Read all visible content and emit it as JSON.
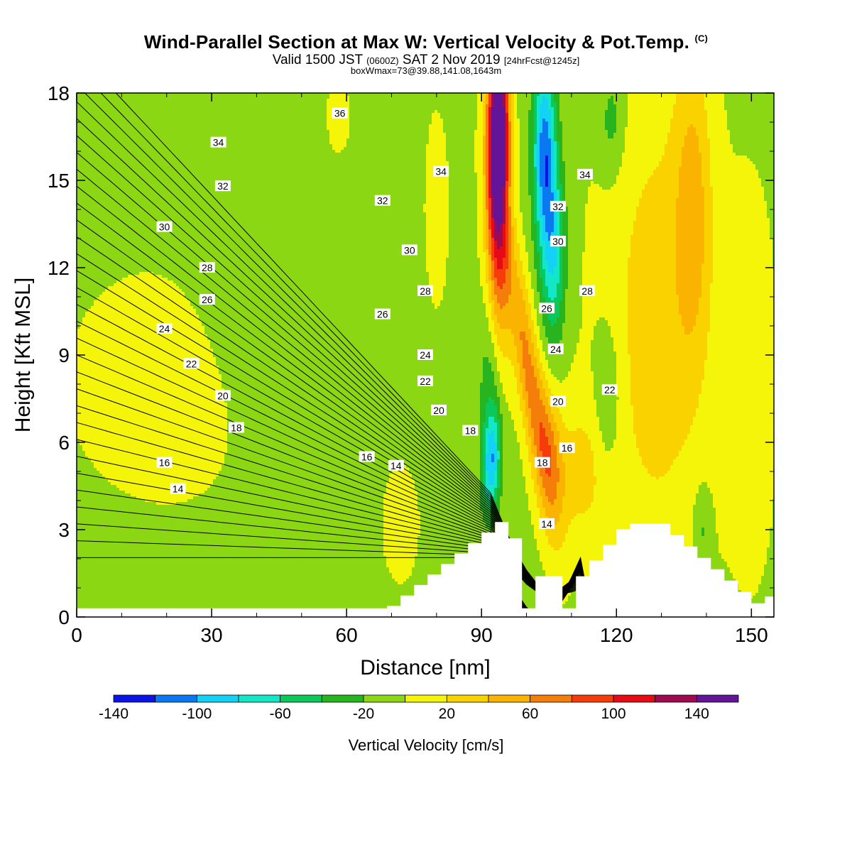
{
  "header": {
    "title": "Wind-Parallel Section at Max W: Vertical Velocity & Pot.Temp.",
    "copyright": "(C)",
    "valid_prefix": "Valid 1500 JST",
    "valid_utc": "(0600Z)",
    "valid_date": "SAT 2 Nov 2019",
    "forecast": "[24hrFcst@1245z]",
    "box_info": "boxWmax=73@39.88,141.08,1643m"
  },
  "chart_data": {
    "type": "heatmap",
    "xlabel": "Distance [nm]",
    "ylabel": "Height [Kft MSL]",
    "xlim": [
      0,
      155
    ],
    "ylim": [
      0,
      18
    ],
    "xticks": [
      "0",
      "30",
      "60",
      "90",
      "120",
      "150"
    ],
    "yticks": [
      "0",
      "3",
      "6",
      "9",
      "12",
      "15",
      "18"
    ],
    "colorbar": {
      "label": "Vertical Velocity [cm/s]",
      "levels": [
        -140,
        -120,
        -100,
        -80,
        -60,
        -40,
        -20,
        0,
        20,
        40,
        60,
        80,
        100,
        120,
        140,
        160
      ],
      "tick_labels": [
        "-140",
        "-100",
        "-60",
        "-20",
        "20",
        "60",
        "100",
        "140"
      ],
      "colors": [
        "#0a14e6",
        "#0a78f0",
        "#14d2f5",
        "#14e6c8",
        "#0ac85a",
        "#28b41e",
        "#8cd714",
        "#f5f50a",
        "#fad200",
        "#fab400",
        "#f57d0a",
        "#f53c0a",
        "#e60a14",
        "#a00a50",
        "#641496"
      ]
    },
    "contour_field": "Potential temperature (C)",
    "contour_labels": [
      {
        "text": "36",
        "x": 58.5,
        "y": 17.3
      },
      {
        "text": "34",
        "x": 31.5,
        "y": 16.3
      },
      {
        "text": "34",
        "x": 81.0,
        "y": 15.3
      },
      {
        "text": "34",
        "x": 113.0,
        "y": 15.2
      },
      {
        "text": "32",
        "x": 32.5,
        "y": 14.8
      },
      {
        "text": "32",
        "x": 68.0,
        "y": 14.3
      },
      {
        "text": "32",
        "x": 107.0,
        "y": 14.1
      },
      {
        "text": "30",
        "x": 19.5,
        "y": 13.4
      },
      {
        "text": "30",
        "x": 74.0,
        "y": 12.6
      },
      {
        "text": "30",
        "x": 107.0,
        "y": 12.9
      },
      {
        "text": "28",
        "x": 29.0,
        "y": 12.0
      },
      {
        "text": "28",
        "x": 77.5,
        "y": 11.2
      },
      {
        "text": "28",
        "x": 113.5,
        "y": 11.2
      },
      {
        "text": "26",
        "x": 29.0,
        "y": 10.9
      },
      {
        "text": "26",
        "x": 68.0,
        "y": 10.4
      },
      {
        "text": "26",
        "x": 104.5,
        "y": 10.6
      },
      {
        "text": "24",
        "x": 19.5,
        "y": 9.9
      },
      {
        "text": "24",
        "x": 77.5,
        "y": 9.0
      },
      {
        "text": "24",
        "x": 106.5,
        "y": 9.2
      },
      {
        "text": "22",
        "x": 25.5,
        "y": 8.7
      },
      {
        "text": "22",
        "x": 77.5,
        "y": 8.1
      },
      {
        "text": "22",
        "x": 118.5,
        "y": 7.8
      },
      {
        "text": "20",
        "x": 32.5,
        "y": 7.6
      },
      {
        "text": "20",
        "x": 80.5,
        "y": 7.1
      },
      {
        "text": "20",
        "x": 107.0,
        "y": 7.4
      },
      {
        "text": "18",
        "x": 35.5,
        "y": 6.5
      },
      {
        "text": "18",
        "x": 87.5,
        "y": 6.4
      },
      {
        "text": "18",
        "x": 103.5,
        "y": 5.3
      },
      {
        "text": "16",
        "x": 19.5,
        "y": 5.3
      },
      {
        "text": "16",
        "x": 64.5,
        "y": 5.5
      },
      {
        "text": "16",
        "x": 109.0,
        "y": 5.8
      },
      {
        "text": "14",
        "x": 22.5,
        "y": 4.4
      },
      {
        "text": "14",
        "x": 71.0,
        "y": 5.2
      },
      {
        "text": "14",
        "x": 104.5,
        "y": 3.2
      }
    ],
    "terrain_peaks": [
      {
        "distance": 95,
        "height": 3.5
      },
      {
        "distance": 125,
        "height": 3.2
      }
    ]
  }
}
